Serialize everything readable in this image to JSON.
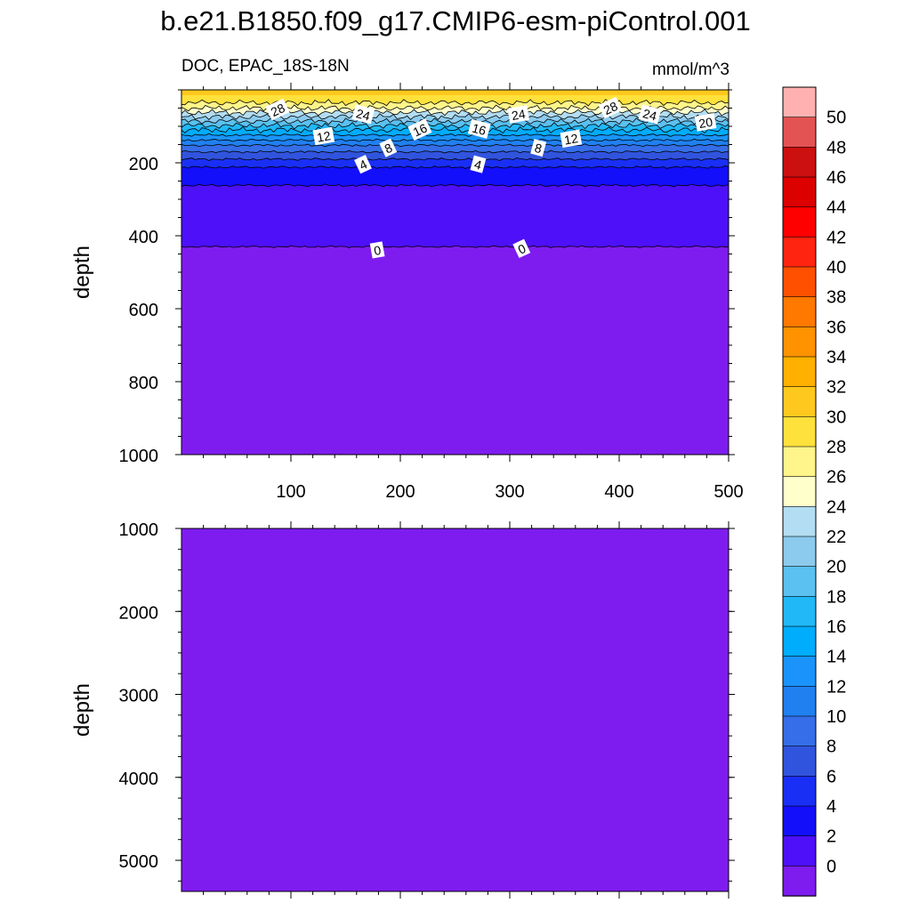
{
  "title": "b.e21.B1850.f09_g17.CMIP6-esm-piControl.001",
  "left_subtitle": "DOC, EPAC_18S-18N",
  "right_subtitle": "mmol/m^3",
  "colors": {
    "background": "#ffffff",
    "contour_line": "#000000",
    "label_box": "#ffffff"
  },
  "chart_data": [
    {
      "type": "contour",
      "panel": "upper",
      "x_ticks": [
        100,
        200,
        300,
        400,
        500
      ],
      "xlim": [
        0,
        500
      ],
      "ylabel": "depth",
      "y_ticks": [
        200,
        400,
        600,
        800,
        1000
      ],
      "ylim": [
        0,
        1000
      ],
      "y_reversed": true,
      "level_depths": [
        {
          "level": 28,
          "depth": 35
        },
        {
          "level": 26,
          "depth": 50
        },
        {
          "level": 24,
          "depth": 62
        },
        {
          "level": 22,
          "depth": 74
        },
        {
          "level": 20,
          "depth": 86
        },
        {
          "level": 18,
          "depth": 98
        },
        {
          "level": 16,
          "depth": 110
        },
        {
          "level": 14,
          "depth": 124
        },
        {
          "level": 12,
          "depth": 138
        },
        {
          "level": 10,
          "depth": 152
        },
        {
          "level": 8,
          "depth": 170
        },
        {
          "level": 6,
          "depth": 190
        },
        {
          "level": 4,
          "depth": 212
        },
        {
          "level": 2,
          "depth": 262
        },
        {
          "level": 0,
          "depth": 430
        }
      ],
      "surface_value": 31,
      "contour_labels": [
        {
          "text": "28",
          "x": 88,
          "depth": 55
        },
        {
          "text": "24",
          "x": 166,
          "depth": 68
        },
        {
          "text": "12",
          "x": 130,
          "depth": 128
        },
        {
          "text": "16",
          "x": 218,
          "depth": 110
        },
        {
          "text": "16",
          "x": 272,
          "depth": 108
        },
        {
          "text": "24",
          "x": 308,
          "depth": 68
        },
        {
          "text": "28",
          "x": 392,
          "depth": 50
        },
        {
          "text": "24",
          "x": 428,
          "depth": 68
        },
        {
          "text": "20",
          "x": 479,
          "depth": 90
        },
        {
          "text": "8",
          "x": 189,
          "depth": 160
        },
        {
          "text": "8",
          "x": 326,
          "depth": 160
        },
        {
          "text": "12",
          "x": 356,
          "depth": 135
        },
        {
          "text": "4",
          "x": 166,
          "depth": 205
        },
        {
          "text": "4",
          "x": 271,
          "depth": 205
        },
        {
          "text": "0",
          "x": 179,
          "depth": 440
        },
        {
          "text": "0",
          "x": 311,
          "depth": 436
        }
      ]
    },
    {
      "type": "contour",
      "panel": "lower",
      "ylabel": "depth",
      "y_ticks": [
        1000,
        2000,
        3000,
        4000,
        5000
      ],
      "ylim": [
        1000,
        5375
      ],
      "y_reversed": true,
      "xlim": [
        0,
        500
      ],
      "fill_value": 0
    },
    {
      "type": "colorbar",
      "labels": [
        "50",
        "48",
        "46",
        "44",
        "42",
        "40",
        "38",
        "36",
        "34",
        "32",
        "30",
        "28",
        "26",
        "24",
        "22",
        "20",
        "18",
        "16",
        "14",
        "12",
        "10",
        "8",
        "6",
        "4",
        "2",
        "0"
      ],
      "colors_top_to_bottom": [
        "#ffb1b1",
        "#e45353",
        "#cc1010",
        "#dd0000",
        "#ff0000",
        "#ff2410",
        "#ff5000",
        "#ff7800",
        "#ff9200",
        "#ffb000",
        "#ffc81e",
        "#ffe13c",
        "#fff58a",
        "#ffffcc",
        "#b3ddf2",
        "#8ccbee",
        "#5bc1f0",
        "#21b8f8",
        "#00acfc",
        "#1a94fb",
        "#2080f0",
        "#356ee8",
        "#3154de",
        "#1a2ff5",
        "#130ffa",
        "#4d10f8",
        "#7e1cef"
      ]
    }
  ]
}
